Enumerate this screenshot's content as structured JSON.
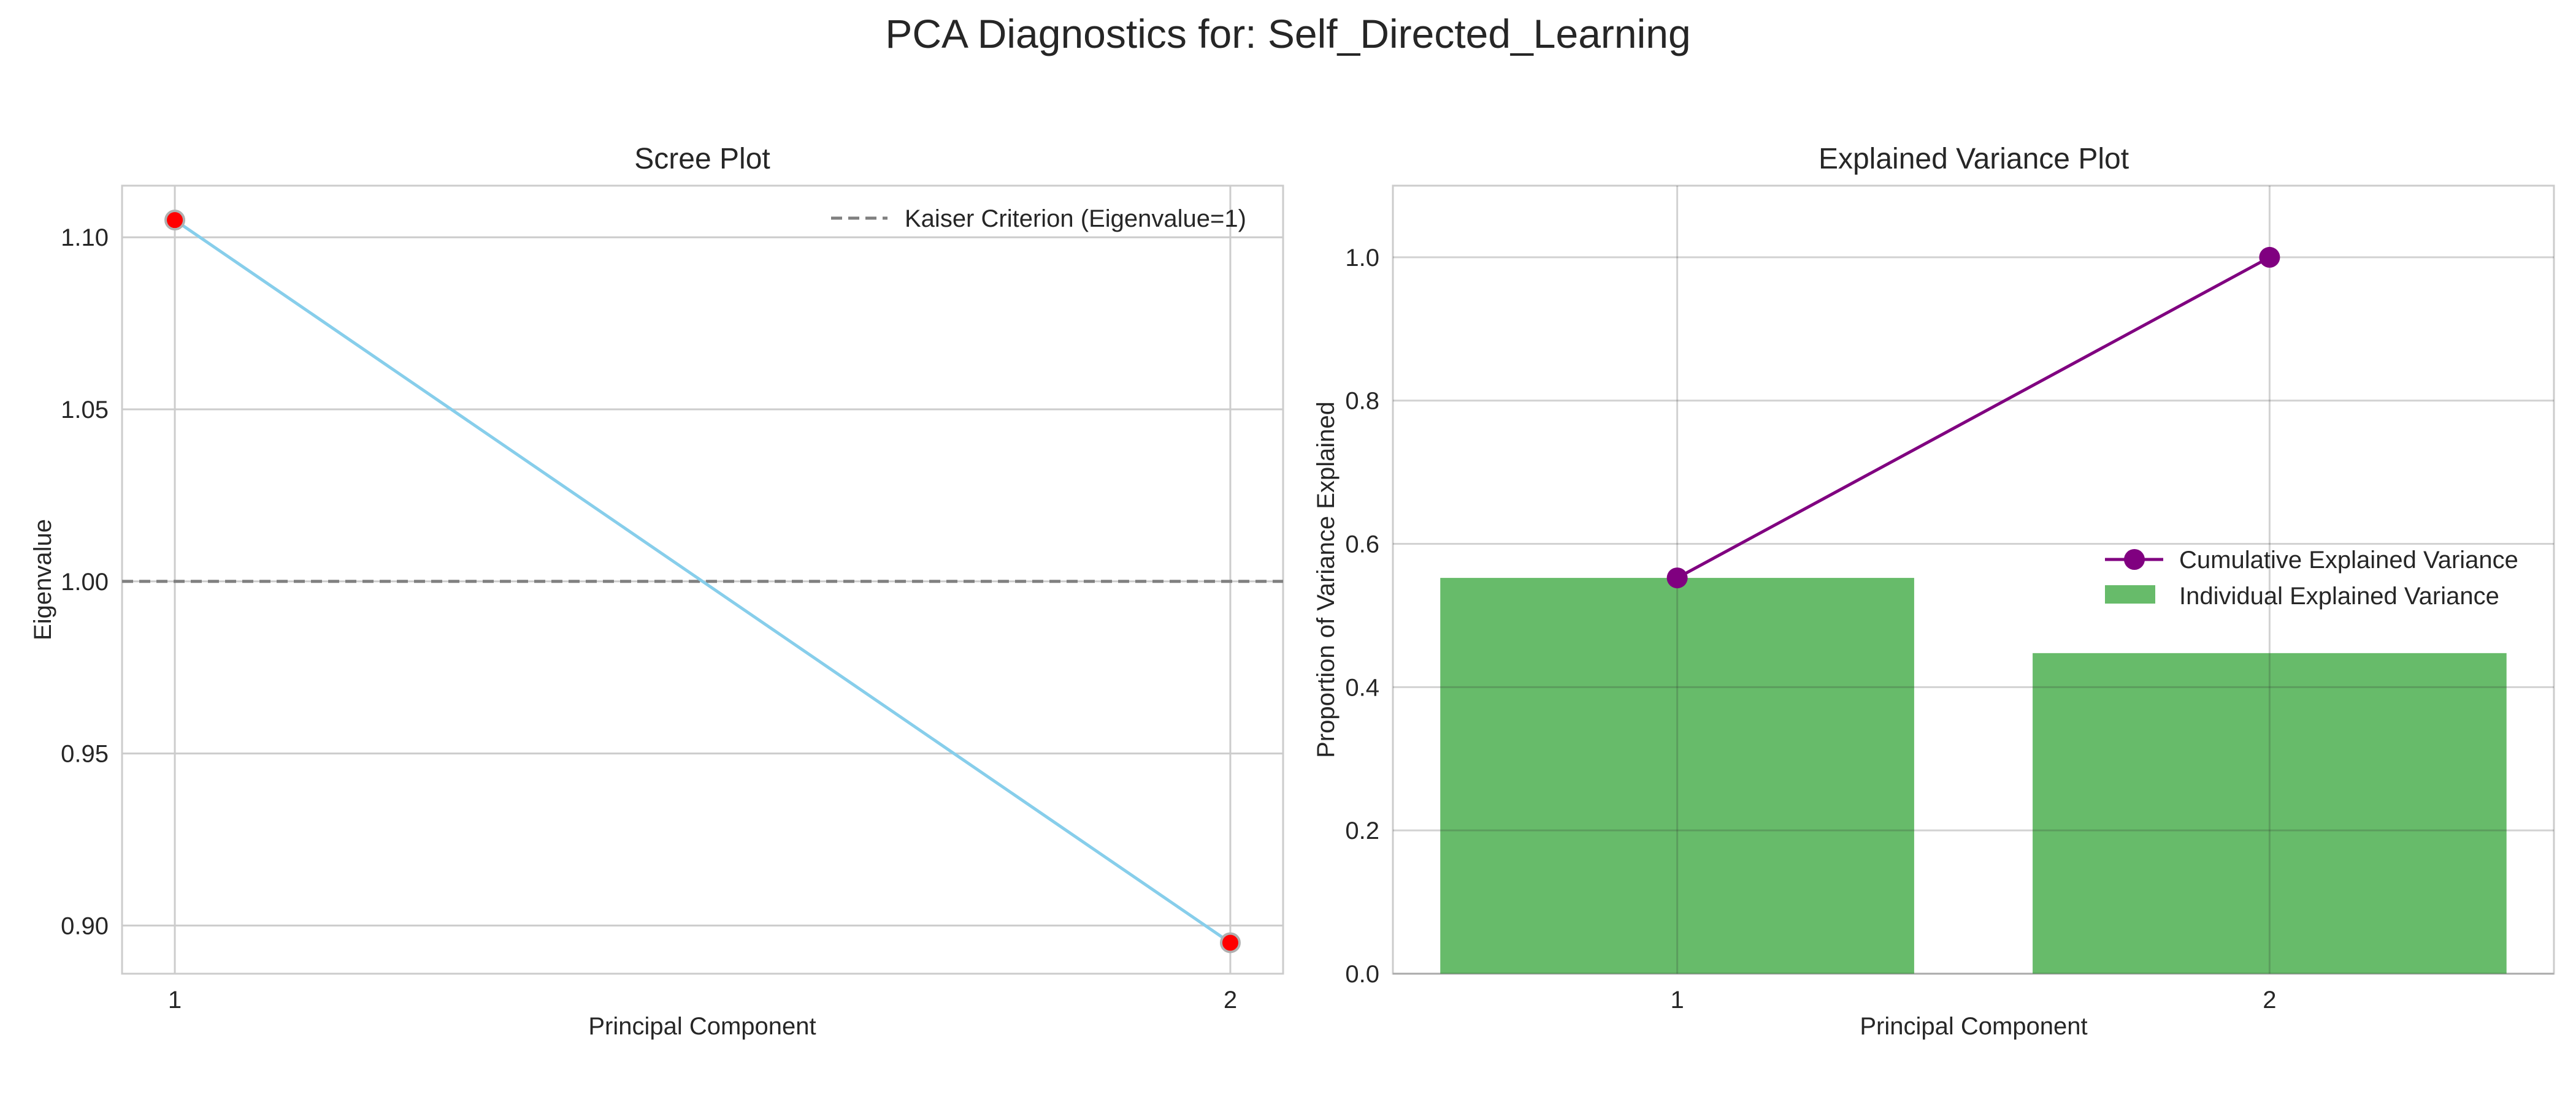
{
  "figure": {
    "title": "PCA Diagnostics for: Self_Directed_Learning"
  },
  "chart_data": [
    {
      "type": "line",
      "title": "Scree Plot",
      "xlabel": "Principal Component",
      "ylabel": "Eigenvalue",
      "x": [
        1,
        2
      ],
      "xticks": [
        "1",
        "2"
      ],
      "yticks": [
        "0.90",
        "0.95",
        "1.00",
        "1.05",
        "1.10"
      ],
      "ytick_values": [
        0.9,
        0.95,
        1.0,
        1.05,
        1.1
      ],
      "xlim": [
        0.95,
        2.05
      ],
      "ylim": [
        0.886,
        1.115
      ],
      "series": [
        {
          "values": [
            1.105,
            0.895
          ],
          "color": "#87ceeb",
          "marker_color": "#ff0000"
        }
      ],
      "reference_line": {
        "name": "Kaiser Criterion (Eigenvalue=1)",
        "y": 1.0,
        "style": "dashed",
        "color": "#808080"
      },
      "legend": {
        "position": "top-right",
        "entries": [
          "Kaiser Criterion (Eigenvalue=1)"
        ]
      },
      "grid": true
    },
    {
      "type": "bar",
      "title": "Explained Variance Plot",
      "xlabel": "Principal Component",
      "ylabel": "Proportion of Variance Explained",
      "categories": [
        "1",
        "2"
      ],
      "x": [
        1,
        2
      ],
      "yticks": [
        "0.0",
        "0.2",
        "0.4",
        "0.6",
        "0.8",
        "1.0"
      ],
      "ytick_values": [
        0.0,
        0.2,
        0.4,
        0.6,
        0.8,
        1.0
      ],
      "xlim": [
        0.52,
        2.48
      ],
      "ylim": [
        0.0,
        1.1
      ],
      "series": [
        {
          "name": "Individual Explained Variance",
          "type": "bar",
          "values": [
            0.5525,
            0.4475
          ],
          "color": "#4caf50"
        },
        {
          "name": "Cumulative Explained Variance",
          "type": "line",
          "values": [
            0.5525,
            1.0
          ],
          "color": "#800080"
        }
      ],
      "legend": {
        "position": "center-right",
        "entries": [
          "Cumulative Explained Variance",
          "Individual Explained Variance"
        ]
      },
      "grid": true
    }
  ]
}
